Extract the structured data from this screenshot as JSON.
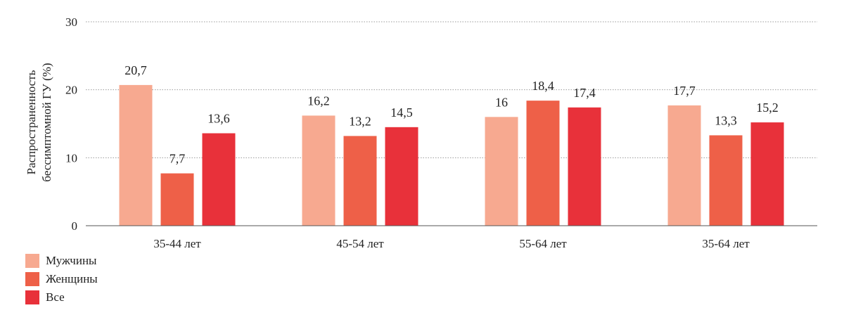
{
  "chart_data": {
    "type": "bar",
    "ylabel_lines": [
      "Распространенность",
      "бессимптомной ГУ (%)"
    ],
    "ylim": [
      0,
      30
    ],
    "yticks": [
      0,
      10,
      20,
      30
    ],
    "grid": true,
    "legend_position": "bottom-left",
    "categories": [
      "35-44 лет",
      "45-54 лет",
      "55-64 лет",
      "35-64 лет"
    ],
    "series": [
      {
        "name": "Мужчины",
        "color": "#f7a990",
        "values": [
          20.7,
          16.2,
          16,
          17.7
        ],
        "labels": [
          "20,7",
          "16,2",
          "16",
          "17,7"
        ]
      },
      {
        "name": "Женщины",
        "color": "#ee6048",
        "values": [
          7.7,
          13.2,
          18.4,
          13.3
        ],
        "labels": [
          "7,7",
          "13,2",
          "18,4",
          "13,3"
        ]
      },
      {
        "name": "Все",
        "color": "#e8313a",
        "values": [
          13.6,
          14.5,
          17.4,
          15.2
        ],
        "labels": [
          "13,6",
          "14,5",
          "17,4",
          "15,2"
        ]
      }
    ]
  }
}
